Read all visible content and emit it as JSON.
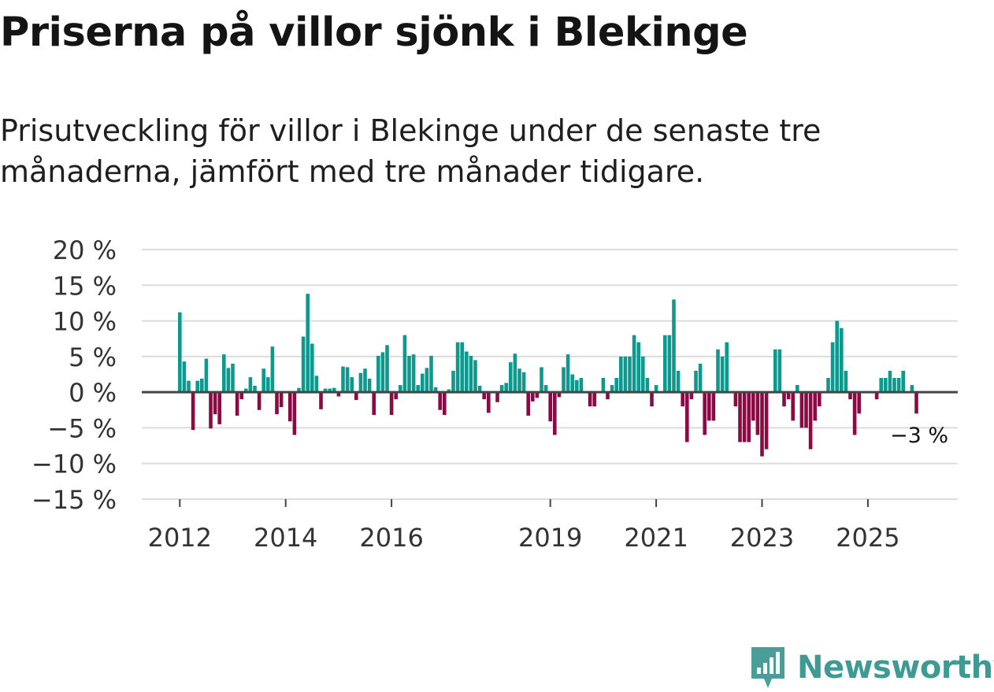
{
  "header": {
    "title": "Priserna på villor sjönk i Blekinge",
    "subtitle": "Prisutveckling för villor i Blekinge under de senaste tre månaderna, jämfört med tre månader tidigare."
  },
  "brand": {
    "name": "Newsworthy",
    "color": "#4a9e97"
  },
  "colors": {
    "positive": "#0c9a8f",
    "negative": "#8c0a43",
    "grid": "#dcdcdc",
    "zero_line": "#444444"
  },
  "chart_data": {
    "type": "bar",
    "title": "Priserna på villor sjönk i Blekinge",
    "ylabel": "",
    "xlabel": "",
    "ylim": [
      -15,
      20
    ],
    "y_ticks": [
      20,
      15,
      10,
      5,
      0,
      -5,
      -10,
      -15
    ],
    "y_tick_labels": [
      "20 %",
      "15 %",
      "10 %",
      "5 %",
      "0 %",
      "−5 %",
      "−10 %",
      "−15 %"
    ],
    "x_tick_labels": [
      {
        "label": "2012",
        "year": 2012
      },
      {
        "label": "2014",
        "year": 2014
      },
      {
        "label": "2016",
        "year": 2016
      },
      {
        "label": "2019",
        "year": 2019
      },
      {
        "label": "2021",
        "year": 2021
      },
      {
        "label": "2023",
        "year": 2023
      },
      {
        "label": "2025",
        "year": 2025
      }
    ],
    "start": {
      "year": 2012,
      "month": 1
    },
    "unit": "%",
    "last_value_label": "−3 %",
    "values": [
      11.2,
      4.3,
      1.6,
      -5.3,
      1.6,
      1.9,
      4.7,
      -5.1,
      -3.1,
      -4.5,
      5.3,
      3.4,
      4.0,
      -3.3,
      -1.0,
      0.5,
      2.1,
      0.9,
      -2.5,
      3.3,
      2.1,
      6.4,
      -3.1,
      -2.1,
      0.0,
      -4.1,
      -6.0,
      0.6,
      7.8,
      13.8,
      6.8,
      2.3,
      -2.4,
      0.5,
      0.5,
      0.6,
      -0.6,
      3.6,
      3.5,
      2.1,
      -1.1,
      2.7,
      3.3,
      1.9,
      -3.2,
      5.1,
      5.6,
      6.6,
      -3.2,
      -1.0,
      1.0,
      8.0,
      5.1,
      5.3,
      1.0,
      2.6,
      3.4,
      5.1,
      0.7,
      -2.5,
      -3.2,
      0.4,
      3.0,
      7.0,
      7.0,
      5.7,
      5.1,
      4.5,
      0.9,
      -1.0,
      -2.9,
      0.0,
      -1.4,
      1.0,
      1.3,
      4.2,
      5.4,
      3.3,
      2.8,
      -3.3,
      -1.3,
      -0.8,
      3.5,
      1.0,
      -4.1,
      -6.0,
      -0.7,
      3.5,
      5.3,
      2.5,
      1.7,
      2.0,
      0.0,
      -2.0,
      -2.0,
      0.0,
      2.0,
      -1.0,
      1.0,
      2.0,
      5.0,
      5.0,
      5.0,
      8.0,
      7.0,
      5.0,
      2.0,
      -2.0,
      1.0,
      0.0,
      8.0,
      8.0,
      13.0,
      3.0,
      -2.0,
      -7.0,
      -1.0,
      3.0,
      4.0,
      -6.0,
      -4.0,
      -4.0,
      6.0,
      5.0,
      7.0,
      0.0,
      -2.0,
      -7.0,
      -7.0,
      -7.0,
      -4.0,
      -6.0,
      -9.0,
      -8.0,
      0.0,
      6.0,
      6.0,
      -2.0,
      -1.0,
      -4.0,
      1.0,
      -5.0,
      -5.0,
      -8.0,
      -4.0,
      -2.0,
      0.0,
      2.0,
      7.0,
      10.0,
      9.0,
      3.0,
      -1.0,
      -6.0,
      -3.0,
      0.0,
      0.0,
      0.0,
      -1.0,
      2.0,
      2.0,
      3.0,
      2.0,
      2.0,
      3.0,
      0.0,
      1.0,
      -3.0
    ]
  }
}
